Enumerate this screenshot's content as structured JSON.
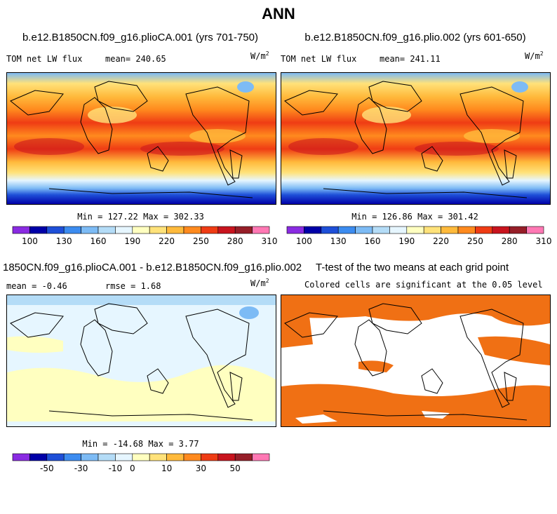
{
  "figure_title": "ANN",
  "panels": [
    {
      "title": "b.e12.B1850CN.f09_g16.plioCA.001 (yrs 701-750)",
      "left_label": "TOM net LW flux",
      "stat_label": "mean= 240.65",
      "units": "W/m",
      "units_exp": "2",
      "minmax": "Min = 127.22 Max = 302.33"
    },
    {
      "title": "b.e12.B1850CN.f09_g16.plio.002 (yrs 601-650)",
      "left_label": "TOM net LW flux",
      "stat_label": "mean= 241.11",
      "units": "W/m",
      "units_exp": "2",
      "minmax": "Min = 126.86 Max = 301.42"
    },
    {
      "title": "1850CN.f09_g16.plioCA.001 - b.e12.B1850CN.f09_g16.plio.002",
      "left_label": "mean =  -0.46",
      "stat_label": "rmse =   1.68",
      "units": "W/m",
      "units_exp": "2",
      "minmax": "Min = -14.68 Max =   3.77"
    },
    {
      "title": "T-test of the two means at each grid point",
      "subtitle": "Colored cells are significant at the 0.05 level"
    }
  ],
  "colorbars": {
    "abs": {
      "colors": [
        "#8a2be2",
        "#0000a8",
        "#1e4fd8",
        "#3c8cf0",
        "#7dbbf5",
        "#b4dcf7",
        "#e6f6ff",
        "#ffffc0",
        "#ffe27a",
        "#ffba3c",
        "#ff8a1e",
        "#ef3c14",
        "#c8141e",
        "#961e28",
        "#ff78b4"
      ],
      "tick_labels": [
        "100",
        "130",
        "160",
        "190",
        "220",
        "250",
        "280",
        "310"
      ]
    },
    "diff": {
      "colors": [
        "#8a2be2",
        "#0000a8",
        "#1e4fd8",
        "#3c8cf0",
        "#7dbbf5",
        "#b4dcf7",
        "#e6f6ff",
        "#ffffc0",
        "#ffe27a",
        "#ffba3c",
        "#ff8a1e",
        "#ef3c14",
        "#c8141e",
        "#961e28",
        "#ff78b4"
      ],
      "tick_labels": [
        "-50",
        "-30",
        "-10",
        "0",
        "10",
        "30",
        "50"
      ]
    }
  },
  "chart_data": [
    {
      "type": "heatmap",
      "title": "b.e12.B1850CN.f09_g16.plioCA.001 (yrs 701-750)",
      "variable": "TOM net LW flux",
      "units": "W/m^2",
      "mean": 240.65,
      "min": 127.22,
      "max": 302.33,
      "colorbar_levels": [
        100,
        115,
        130,
        145,
        160,
        175,
        190,
        205,
        220,
        235,
        250,
        265,
        280,
        295,
        310
      ]
    },
    {
      "type": "heatmap",
      "title": "b.e12.B1850CN.f09_g16.plio.002 (yrs 601-650)",
      "variable": "TOM net LW flux",
      "units": "W/m^2",
      "mean": 241.11,
      "min": 126.86,
      "max": 301.42,
      "colorbar_levels": [
        100,
        115,
        130,
        145,
        160,
        175,
        190,
        205,
        220,
        235,
        250,
        265,
        280,
        295,
        310
      ]
    },
    {
      "type": "heatmap",
      "title": "1850CN.f09_g16.plioCA.001 - b.e12.B1850CN.f09_g16.plio.002",
      "units": "W/m^2",
      "mean": -0.46,
      "rmse": 1.68,
      "min": -14.68,
      "max": 3.77,
      "colorbar_levels": [
        -60,
        -50,
        -40,
        -30,
        -20,
        -10,
        -5,
        0,
        5,
        10,
        20,
        30,
        40,
        50,
        60
      ]
    },
    {
      "type": "heatmap",
      "title": "T-test of the two means at each grid point",
      "note": "Colored cells are significant at the 0.05 level",
      "significant_color": "#f07014"
    }
  ]
}
